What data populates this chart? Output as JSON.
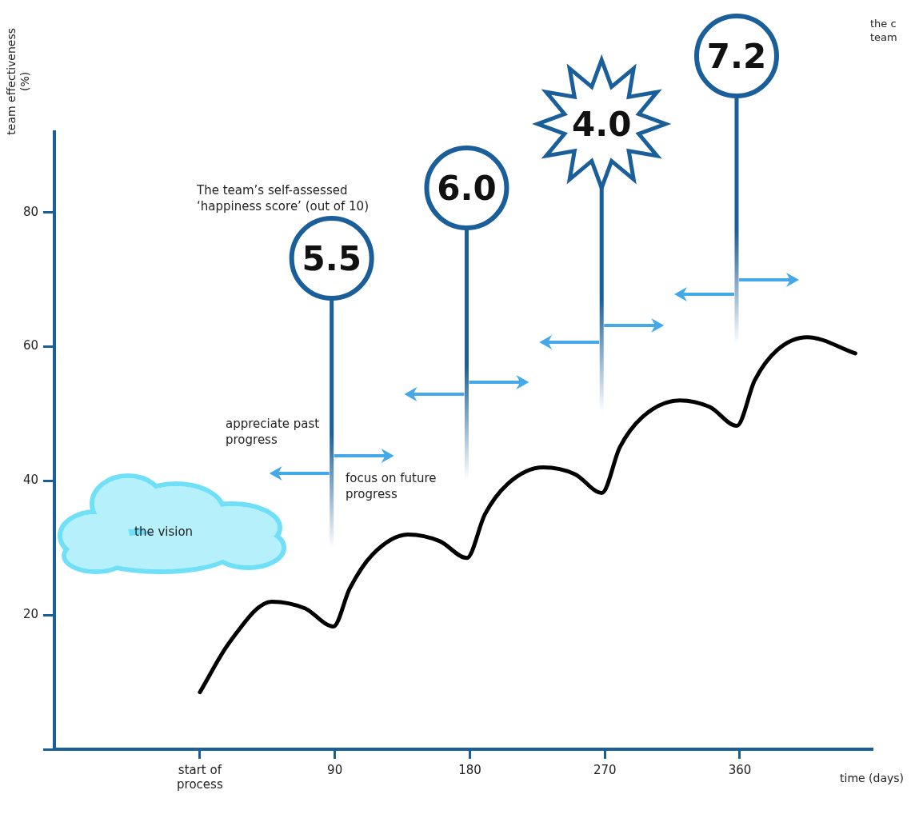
{
  "chart_data": {
    "type": "line",
    "xlabel": "time (days)",
    "ylabel": "team effectiveness (%)",
    "xlim": [
      -97,
      448
    ],
    "ylim": [
      0,
      92
    ],
    "xticks": [
      {
        "value": 0,
        "label": "start of process"
      },
      90,
      180,
      270,
      360
    ],
    "yticks": [
      {
        "value": 0,
        "label": null
      },
      20,
      40,
      60,
      80
    ],
    "grid": false,
    "legend": false,
    "marker": "none",
    "line_style": "solid",
    "series": [
      {
        "color": "#000000",
        "x": [
          0,
          20,
          48,
          70,
          89,
          100,
          115,
          139,
          160,
          178,
          190,
          205,
          229,
          250,
          268,
          280,
          295,
          320,
          340,
          358,
          370,
          385,
          405,
          437
        ],
        "values": [
          8.5,
          16,
          22,
          21,
          18.3,
          24,
          29,
          32,
          31,
          28.5,
          35,
          39.5,
          42,
          41,
          38.2,
          45,
          49.5,
          52,
          51,
          48.2,
          55,
          59.5,
          61.4,
          59
        ]
      }
    ],
    "annotations": [
      "5.5",
      "6.0",
      "4.0",
      "7.2",
      "The team’s self-assessed ‘happiness score’ (out of 10)",
      "appreciate past progress",
      "focus on future progress",
      "the vision",
      "the c team"
    ]
  }
}
